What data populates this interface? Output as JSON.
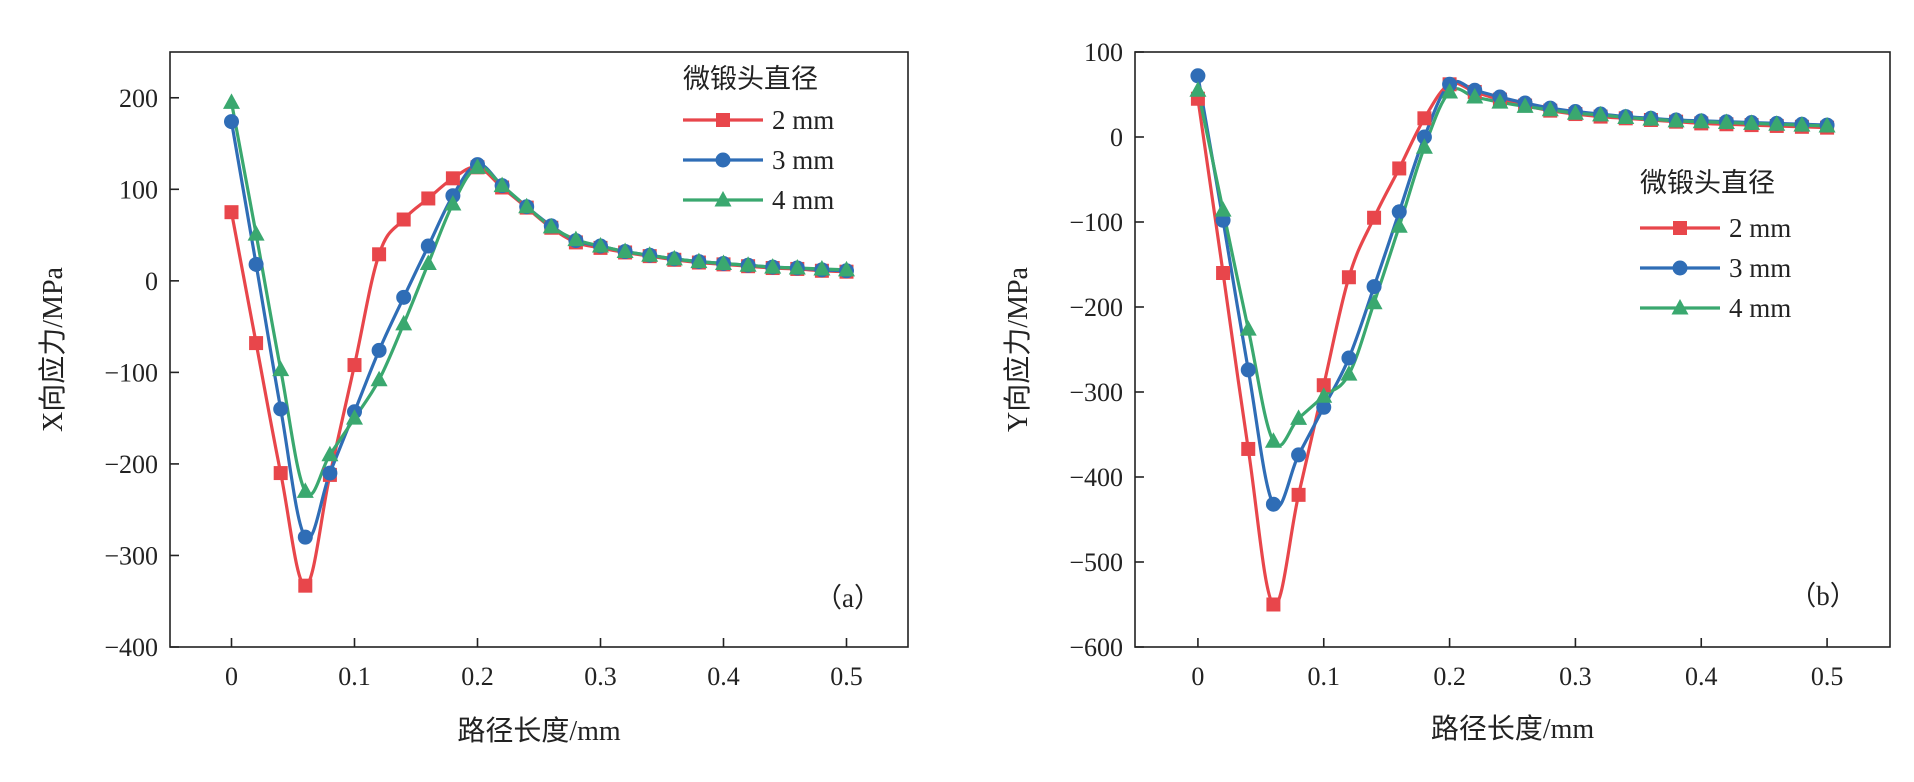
{
  "colors": {
    "2mm": "#e8464b",
    "3mm": "#2f6db6",
    "4mm": "#3aa86f",
    "axis": "#222222"
  },
  "chart_data": [
    {
      "type": "line",
      "panel_label": "（a）",
      "xlabel": "路径长度/mm",
      "ylabel": "X向应力/MPa",
      "xlim": [
        -0.05,
        0.55
      ],
      "ylim": [
        -400,
        250
      ],
      "xticks": [
        0,
        0.1,
        0.2,
        0.3,
        0.4,
        0.5
      ],
      "xtick_labels": [
        "0",
        "0.1",
        "0.2",
        "0.3",
        "0.4",
        "0.5"
      ],
      "yticks": [
        -400,
        -300,
        -200,
        -100,
        0,
        100,
        200
      ],
      "ytick_labels": [
        "−400",
        "−300",
        "−200",
        "−100",
        "0",
        "100",
        "200"
      ],
      "grid": false,
      "legend": {
        "title": "微锻头直径",
        "position": "top-right"
      },
      "x": [
        0,
        0.02,
        0.04,
        0.06,
        0.08,
        0.1,
        0.12,
        0.14,
        0.16,
        0.18,
        0.2,
        0.22,
        0.24,
        0.26,
        0.28,
        0.3,
        0.32,
        0.34,
        0.36,
        0.38,
        0.4,
        0.42,
        0.44,
        0.46,
        0.48,
        0.5
      ],
      "series": [
        {
          "name": "2 mm",
          "marker": "square",
          "color_key": "2mm",
          "values": [
            75,
            -68,
            -210,
            -333,
            -212,
            -92,
            29,
            67,
            90,
            112,
            124,
            102,
            80,
            58,
            42,
            36,
            31,
            27,
            23,
            20,
            18,
            16,
            14,
            13,
            11,
            10
          ]
        },
        {
          "name": "3 mm",
          "marker": "circle",
          "color_key": "3mm",
          "values": [
            174,
            18,
            -140,
            -280,
            -210,
            -143,
            -76,
            -18,
            38,
            93,
            127,
            104,
            81,
            60,
            44,
            38,
            32,
            28,
            24,
            21,
            19,
            17,
            15,
            14,
            12,
            11
          ]
        },
        {
          "name": "4 mm",
          "marker": "triangle",
          "color_key": "4mm",
          "values": [
            195,
            51,
            -97,
            -230,
            -190,
            -150,
            -108,
            -47,
            19,
            84,
            124,
            104,
            81,
            59,
            45,
            38,
            32,
            28,
            24,
            21,
            19,
            17,
            15,
            14,
            13,
            12
          ]
        }
      ]
    },
    {
      "type": "line",
      "panel_label": "（b）",
      "xlabel": "路径长度/mm",
      "ylabel": "Y向应力/MPa",
      "xlim": [
        -0.05,
        0.55
      ],
      "ylim": [
        -600,
        100
      ],
      "xticks": [
        0,
        0.1,
        0.2,
        0.3,
        0.4,
        0.5
      ],
      "xtick_labels": [
        "0",
        "0.1",
        "0.2",
        "0.3",
        "0.4",
        "0.5"
      ],
      "yticks": [
        -600,
        -500,
        -400,
        -300,
        -200,
        -100,
        0,
        100
      ],
      "ytick_labels": [
        "−600",
        "−500",
        "−400",
        "−300",
        "−200",
        "−100",
        "0",
        "100"
      ],
      "grid": false,
      "legend": {
        "title": "微锻头直径",
        "position": "center-right"
      },
      "x": [
        0,
        0.02,
        0.04,
        0.06,
        0.08,
        0.1,
        0.12,
        0.14,
        0.16,
        0.18,
        0.2,
        0.22,
        0.24,
        0.26,
        0.28,
        0.3,
        0.32,
        0.34,
        0.36,
        0.38,
        0.4,
        0.42,
        0.44,
        0.46,
        0.48,
        0.5
      ],
      "series": [
        {
          "name": "2 mm",
          "marker": "square",
          "color_key": "2mm",
          "values": [
            45,
            -160,
            -367,
            -550,
            -421,
            -292,
            -165,
            -95,
            -37,
            22,
            62,
            53,
            44,
            37,
            31,
            27,
            24,
            22,
            20,
            18,
            16,
            15,
            14,
            13,
            12,
            11
          ]
        },
        {
          "name": "3 mm",
          "marker": "circle",
          "color_key": "3mm",
          "values": [
            72,
            -98,
            -274,
            -432,
            -374,
            -318,
            -260,
            -176,
            -88,
            0,
            62,
            55,
            47,
            40,
            34,
            30,
            27,
            24,
            22,
            20,
            19,
            18,
            17,
            16,
            15,
            14
          ]
        },
        {
          "name": "4 mm",
          "marker": "triangle",
          "color_key": "4mm",
          "values": [
            55,
            -86,
            -226,
            -358,
            -331,
            -305,
            -279,
            -195,
            -105,
            -12,
            53,
            47,
            41,
            36,
            32,
            28,
            26,
            23,
            21,
            19,
            18,
            17,
            16,
            15,
            14,
            13
          ]
        }
      ]
    }
  ]
}
